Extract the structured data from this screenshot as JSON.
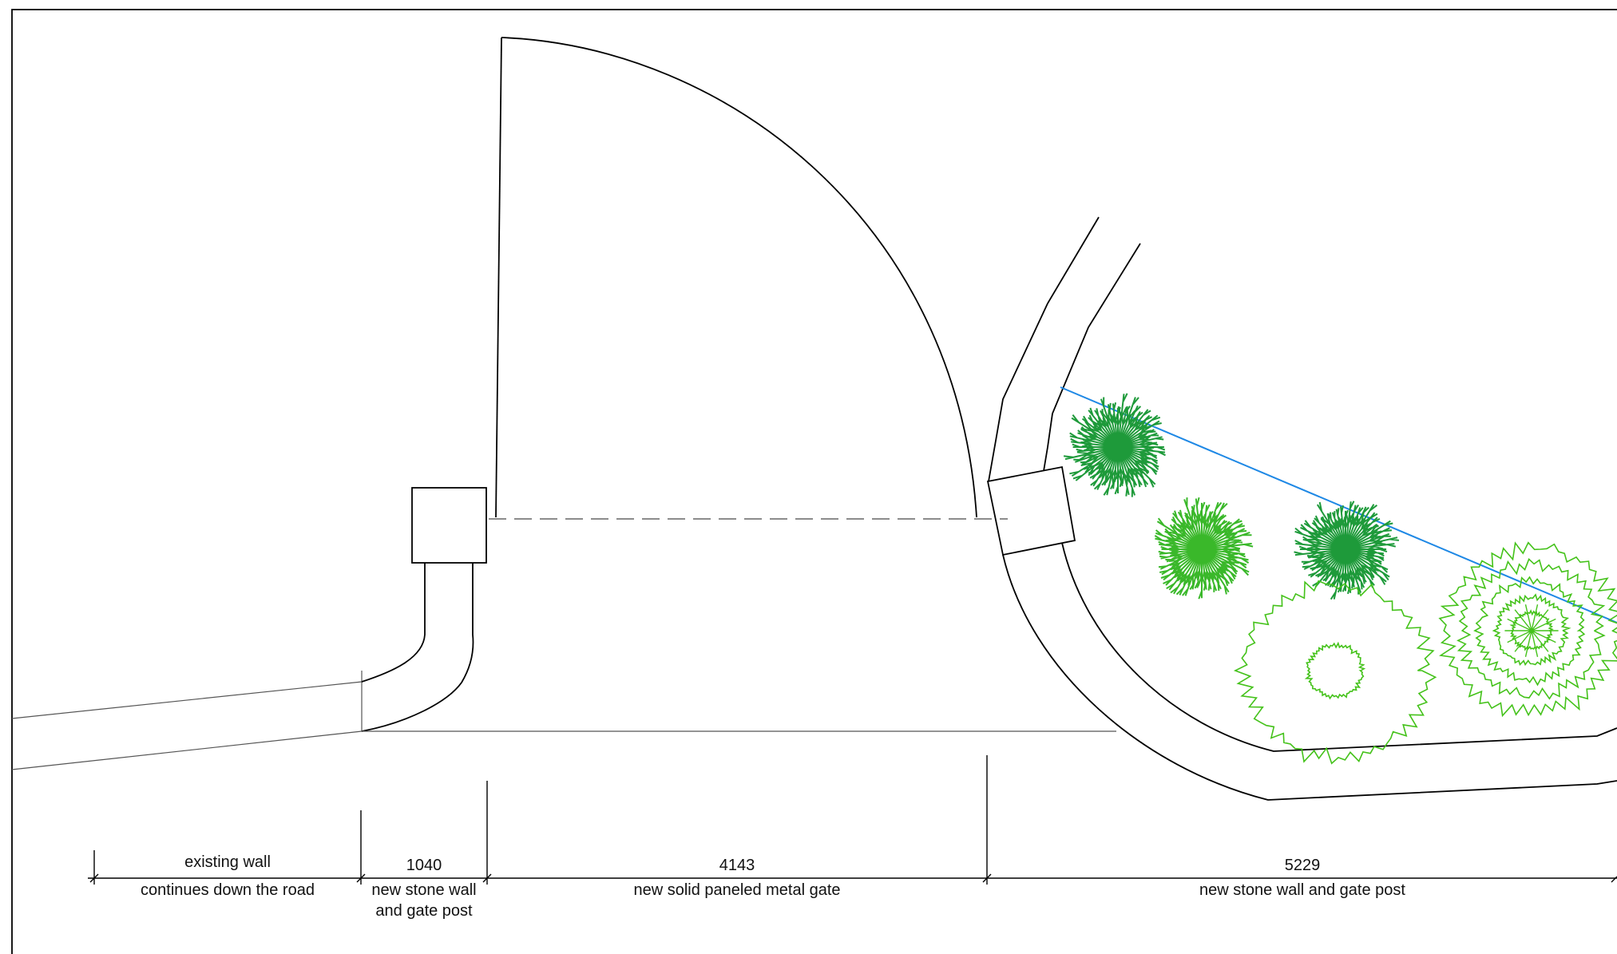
{
  "dimensions": [
    {
      "value": "",
      "label_above": "existing wall",
      "label_below_1": "continues down the road",
      "label_below_2": ""
    },
    {
      "value": "1040",
      "label_above": "",
      "label_below_1": "new stone wall",
      "label_below_2": "and gate post"
    },
    {
      "value": "4143",
      "label_above": "",
      "label_below_1": "new solid paneled metal gate",
      "label_below_2": ""
    },
    {
      "value": "5229",
      "label_above": "",
      "label_below_1": "new stone wall and gate post",
      "label_below_2": ""
    }
  ],
  "colors": {
    "line": "#000000",
    "sightline": "#1e88e5",
    "tree_dark": "#1e9a3a",
    "tree_mid": "#3ab82a",
    "shrub_outline": "#44c21a"
  },
  "trees": [
    {
      "kind": "spiky",
      "color": "tree_dark"
    },
    {
      "kind": "spiky",
      "color": "tree_mid"
    },
    {
      "kind": "spiky",
      "color": "tree_dark"
    },
    {
      "kind": "bushy-outline",
      "color": "shrub_outline"
    },
    {
      "kind": "dense-outline",
      "color": "shrub_outline"
    }
  ]
}
